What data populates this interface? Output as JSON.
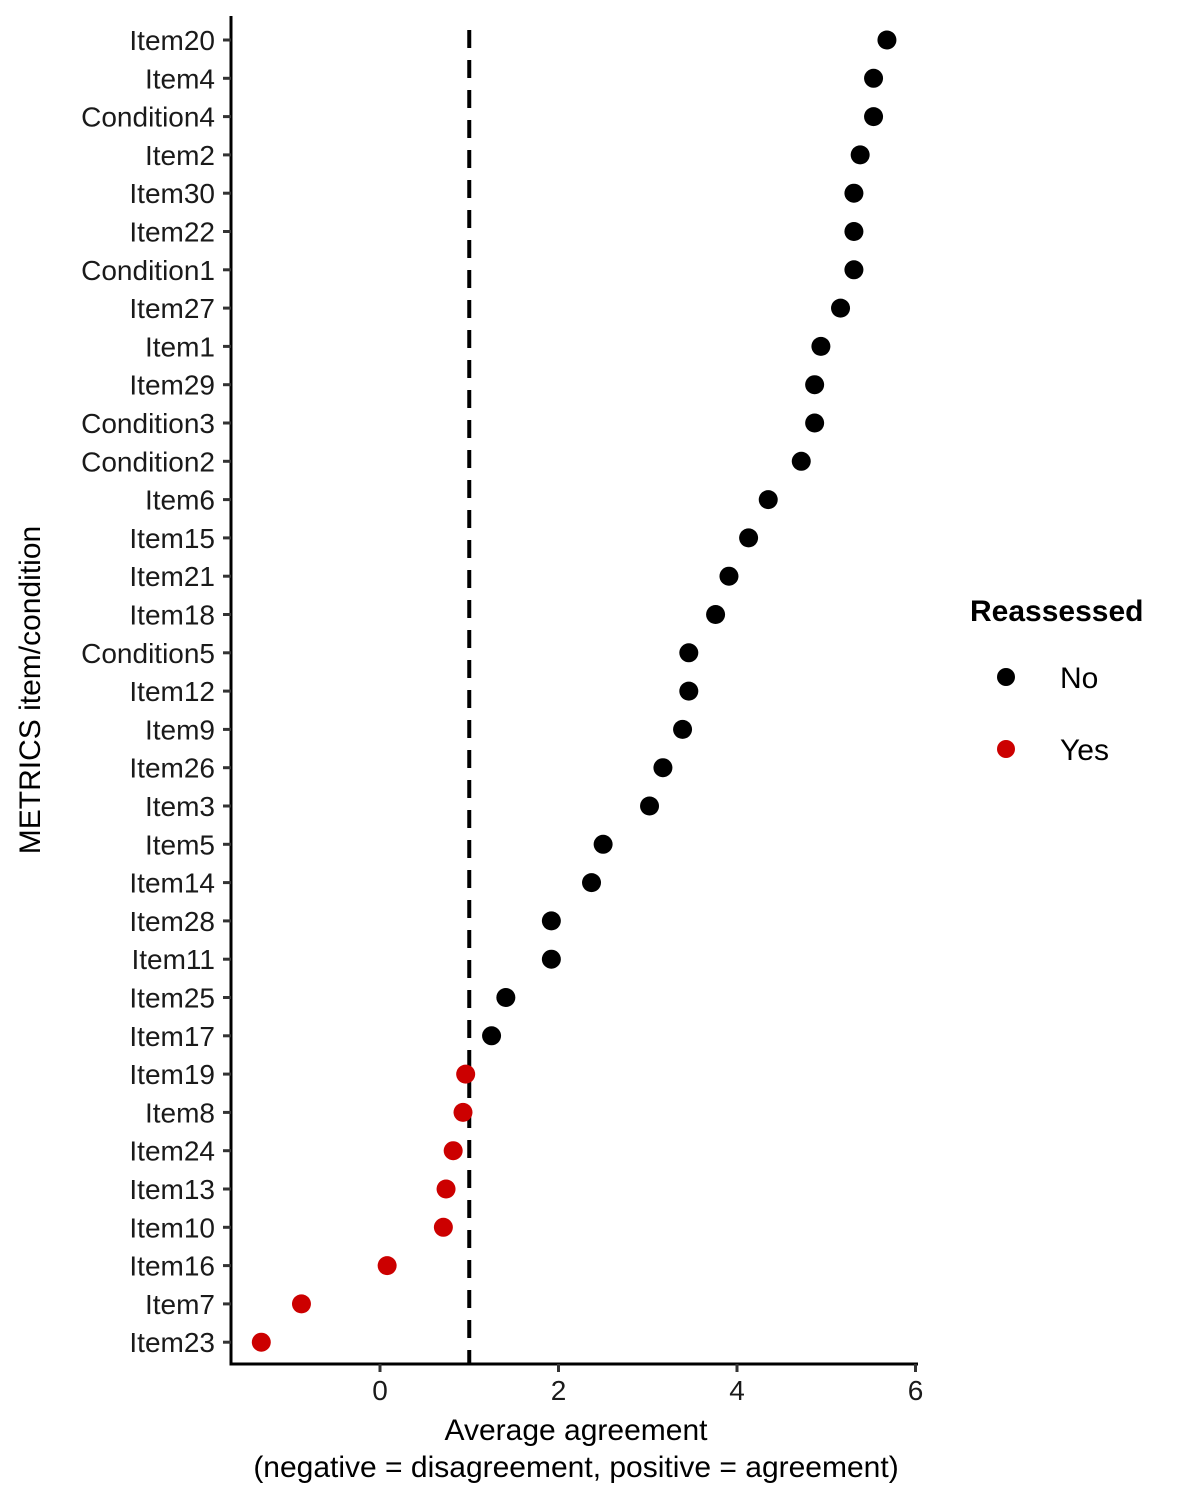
{
  "chart_data": {
    "type": "scatter",
    "xlabel_line1": "Average agreement",
    "xlabel_line2": "(negative = disagreement, positive = agreement)",
    "ylabel": "METRICS item/condition",
    "xlim": [
      -1.67,
      6.0
    ],
    "x_ticks": [
      0,
      2,
      4,
      6
    ],
    "reference_line": {
      "x": 1,
      "style": "dashed"
    },
    "grid": false,
    "legend": {
      "title": "Reassessed",
      "position": "right",
      "entries": [
        {
          "label": "No",
          "color": "#000000"
        },
        {
          "label": "Yes",
          "color": "#cc0000"
        }
      ]
    },
    "points": [
      {
        "label": "Item20",
        "value": 5.68,
        "reassessed": "No"
      },
      {
        "label": "Item4",
        "value": 5.53,
        "reassessed": "No"
      },
      {
        "label": "Condition4",
        "value": 5.53,
        "reassessed": "No"
      },
      {
        "label": "Item2",
        "value": 5.38,
        "reassessed": "No"
      },
      {
        "label": "Item30",
        "value": 5.31,
        "reassessed": "No"
      },
      {
        "label": "Item22",
        "value": 5.31,
        "reassessed": "No"
      },
      {
        "label": "Condition1",
        "value": 5.31,
        "reassessed": "No"
      },
      {
        "label": "Item27",
        "value": 5.16,
        "reassessed": "No"
      },
      {
        "label": "Item1",
        "value": 4.94,
        "reassessed": "No"
      },
      {
        "label": "Item29",
        "value": 4.87,
        "reassessed": "No"
      },
      {
        "label": "Condition3",
        "value": 4.87,
        "reassessed": "No"
      },
      {
        "label": "Condition2",
        "value": 4.72,
        "reassessed": "No"
      },
      {
        "label": "Item6",
        "value": 4.35,
        "reassessed": "No"
      },
      {
        "label": "Item15",
        "value": 4.13,
        "reassessed": "No"
      },
      {
        "label": "Item21",
        "value": 3.91,
        "reassessed": "No"
      },
      {
        "label": "Item18",
        "value": 3.76,
        "reassessed": "No"
      },
      {
        "label": "Condition5",
        "value": 3.46,
        "reassessed": "No"
      },
      {
        "label": "Item12",
        "value": 3.46,
        "reassessed": "No"
      },
      {
        "label": "Item9",
        "value": 3.39,
        "reassessed": "No"
      },
      {
        "label": "Item26",
        "value": 3.17,
        "reassessed": "No"
      },
      {
        "label": "Item3",
        "value": 3.02,
        "reassessed": "No"
      },
      {
        "label": "Item5",
        "value": 2.5,
        "reassessed": "No"
      },
      {
        "label": "Item14",
        "value": 2.37,
        "reassessed": "No"
      },
      {
        "label": "Item28",
        "value": 1.92,
        "reassessed": "No"
      },
      {
        "label": "Item11",
        "value": 1.92,
        "reassessed": "No"
      },
      {
        "label": "Item25",
        "value": 1.41,
        "reassessed": "No"
      },
      {
        "label": "Item17",
        "value": 1.25,
        "reassessed": "No"
      },
      {
        "label": "Item19",
        "value": 0.96,
        "reassessed": "Yes"
      },
      {
        "label": "Item8",
        "value": 0.93,
        "reassessed": "Yes"
      },
      {
        "label": "Item24",
        "value": 0.82,
        "reassessed": "Yes"
      },
      {
        "label": "Item13",
        "value": 0.74,
        "reassessed": "Yes"
      },
      {
        "label": "Item10",
        "value": 0.71,
        "reassessed": "Yes"
      },
      {
        "label": "Item16",
        "value": 0.08,
        "reassessed": "Yes"
      },
      {
        "label": "Item7",
        "value": -0.88,
        "reassessed": "Yes"
      },
      {
        "label": "Item23",
        "value": -1.33,
        "reassessed": "Yes"
      }
    ]
  }
}
